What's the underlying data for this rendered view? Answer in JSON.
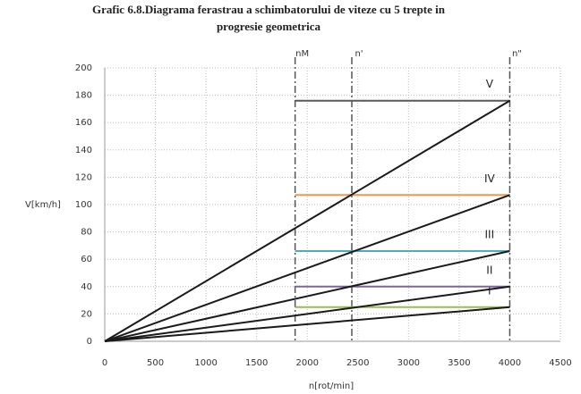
{
  "chart_data": {
    "type": "line",
    "title": "Grafic 6.8.Diagrama ferastrau a schimbatorului de viteze cu 5 trepte in",
    "subtitle": "progresie geometrica",
    "x_label": "n[rot/min]",
    "y_label": "V[km/h]",
    "x": [
      0,
      4000
    ],
    "series": [
      {
        "name": "I",
        "color": "#9bbb59",
        "values": [
          0,
          25
        ]
      },
      {
        "name": "II",
        "color": "#8064a2",
        "values": [
          0,
          40
        ]
      },
      {
        "name": "III",
        "color": "#4bacc6",
        "values": [
          0,
          66
        ]
      },
      {
        "name": "IV",
        "color": "#f79646",
        "values": [
          0,
          107
        ]
      },
      {
        "name": "V",
        "color": "#595959",
        "values": [
          0,
          176
        ]
      }
    ],
    "ray_color": "#1a1a1a",
    "vlines": [
      {
        "label": "nM",
        "value": 1880
      },
      {
        "label": "n'",
        "value": 2440
      },
      {
        "label": "n\"",
        "value": 4000
      }
    ],
    "xlim": [
      0,
      4500
    ],
    "xticks": [
      0,
      500,
      1000,
      1500,
      2000,
      2500,
      3000,
      3500,
      4000,
      4500
    ],
    "ylim": [
      0,
      200
    ],
    "yticks": [
      0,
      20,
      40,
      60,
      80,
      100,
      120,
      140,
      160,
      180,
      200
    ],
    "grid": true
  }
}
